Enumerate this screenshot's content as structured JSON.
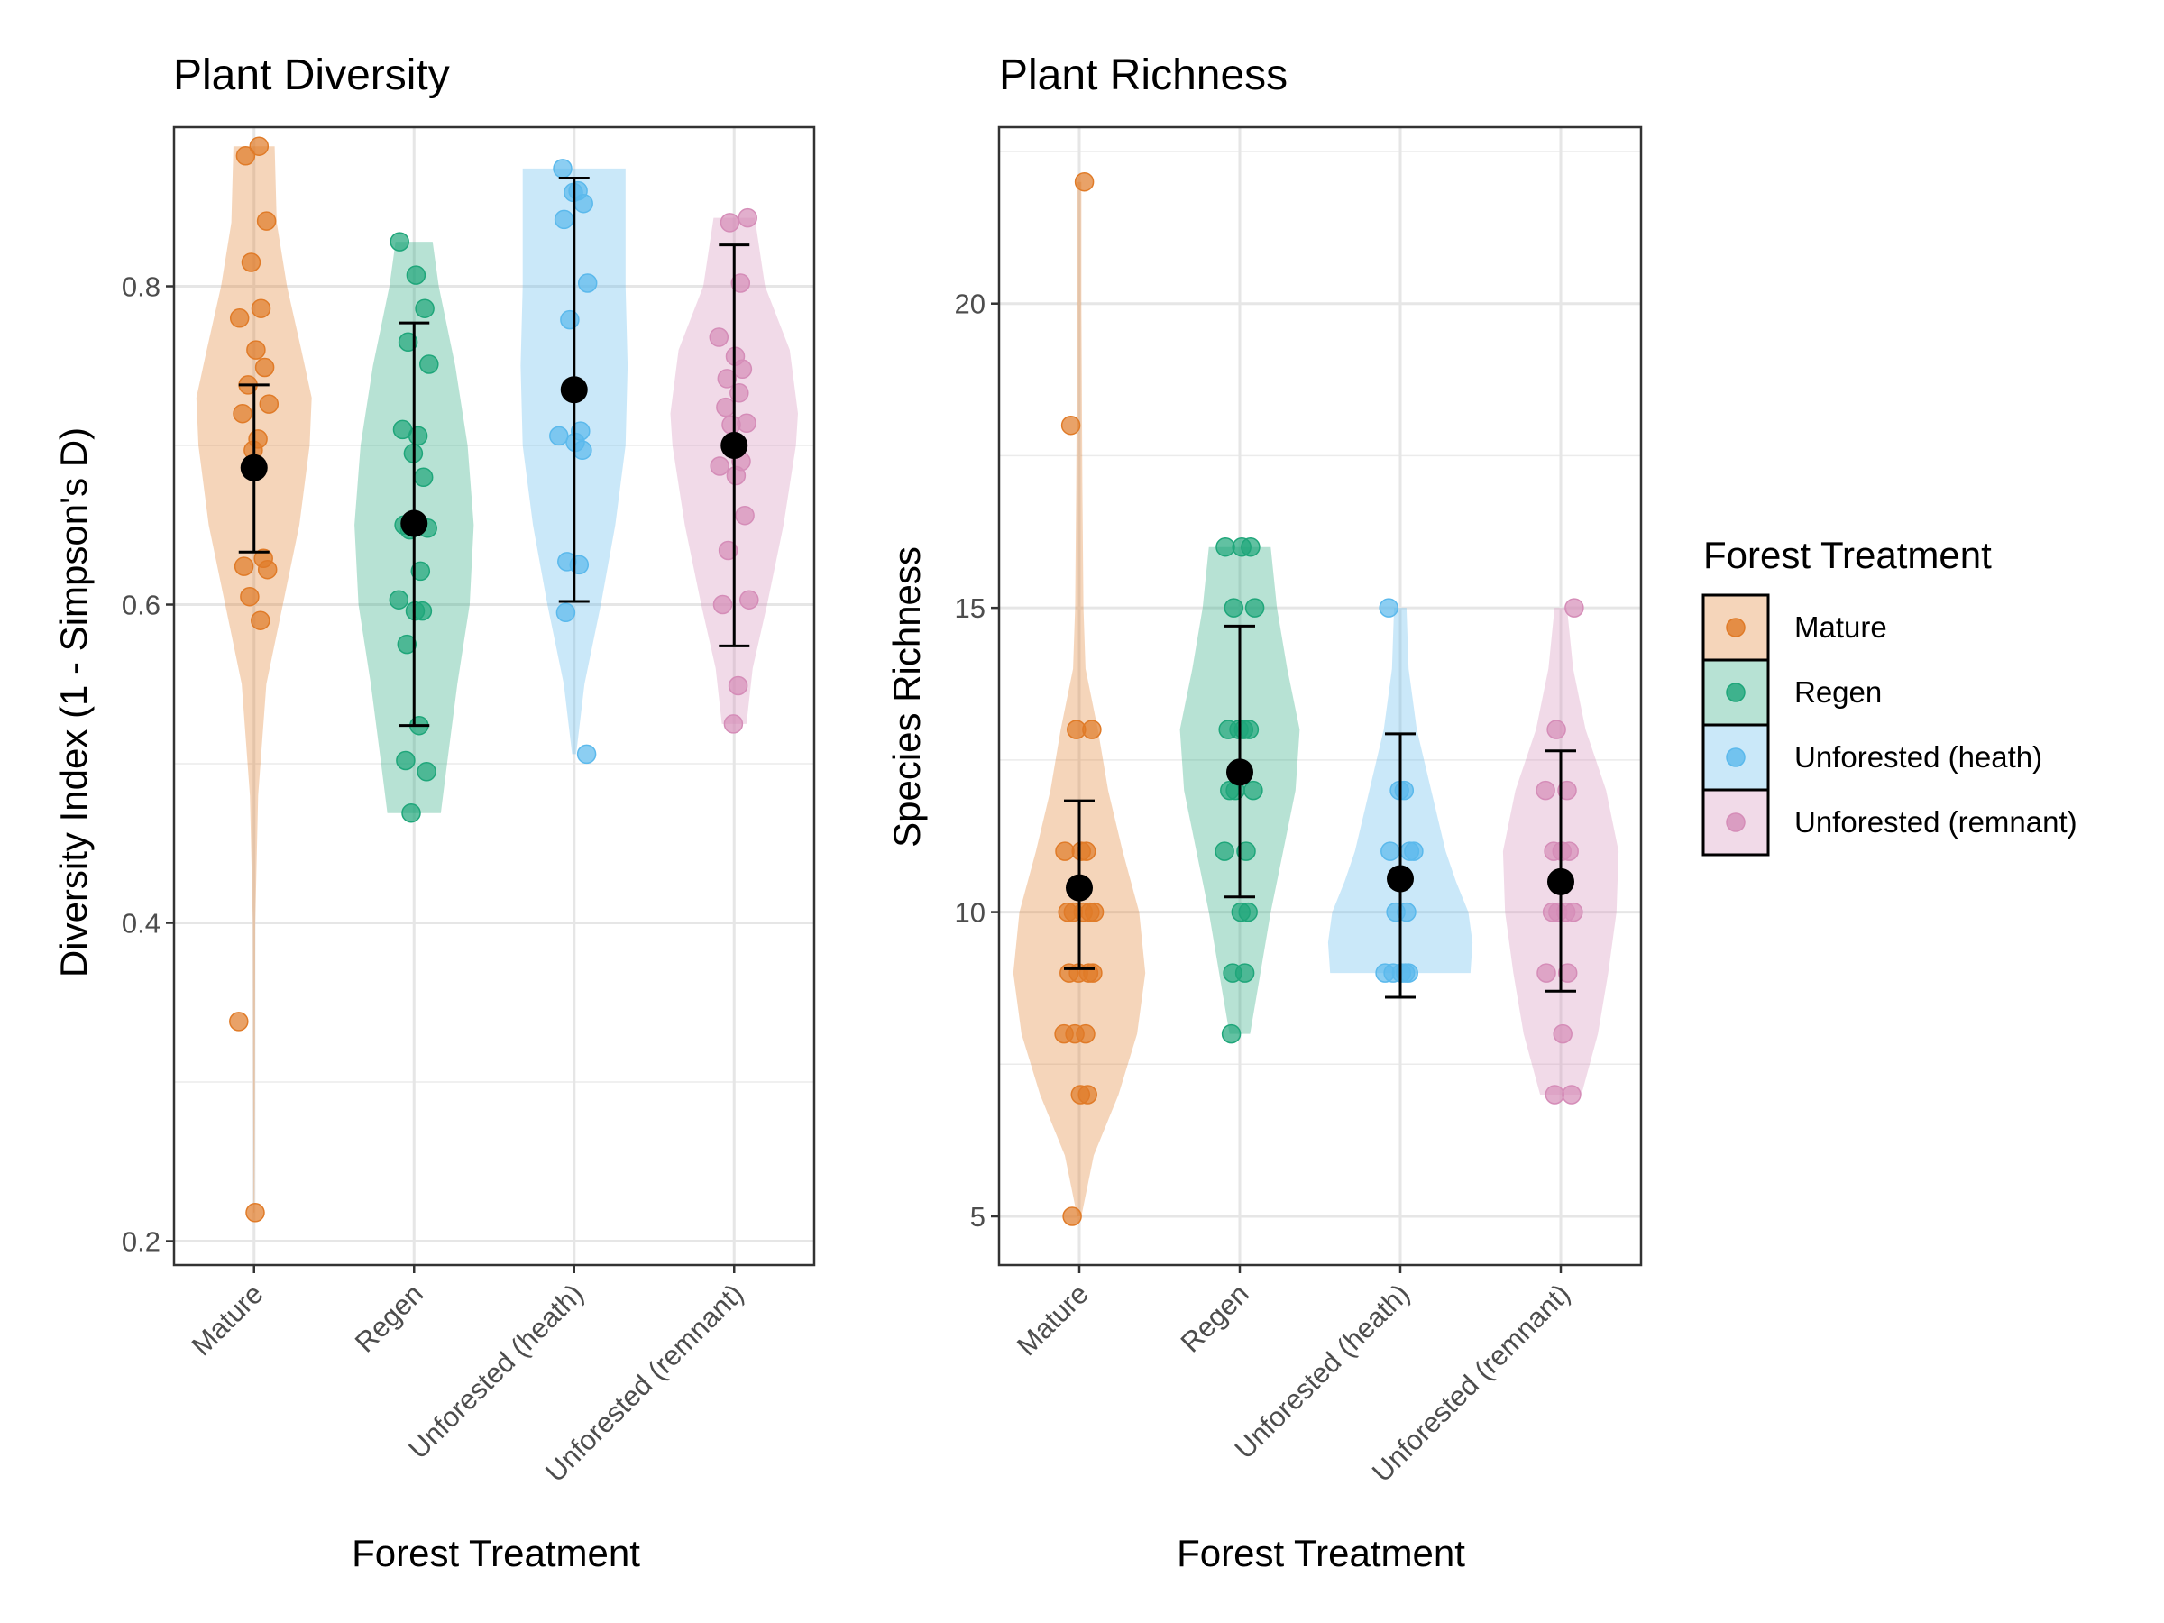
{
  "legend": {
    "title": "Forest Treatment",
    "entries": [
      {
        "label": "Mature",
        "color": "#E07B28"
      },
      {
        "label": "Regen",
        "color": "#1FA67A"
      },
      {
        "label": "Unforested (heath)",
        "color": "#5BB9EC"
      },
      {
        "label": "Unforested (remnant)",
        "color": "#D58DB8"
      }
    ]
  },
  "chart_data": [
    {
      "type": "violin",
      "title": "Plant Diversity",
      "xlabel": "Forest Treatment",
      "ylabel": "Diversity Index (1 - Simpson's D)",
      "ylim": [
        0.185,
        0.9
      ],
      "yticks": [
        0.2,
        0.4,
        0.6,
        0.8
      ],
      "ytick_labels": [
        "0.2",
        "0.4",
        "0.6",
        "0.8"
      ],
      "grid": true,
      "categories": [
        "Mature",
        "Regen",
        "Unforested (heath)",
        "Unforested (remnant)"
      ],
      "series": [
        {
          "name": "Mature",
          "points": [
            0.888,
            0.882,
            0.841,
            0.815,
            0.786,
            0.78,
            0.76,
            0.749,
            0.738,
            0.726,
            0.72,
            0.704,
            0.697,
            0.629,
            0.624,
            0.622,
            0.605,
            0.59,
            0.338,
            0.218
          ],
          "mean": 0.686,
          "lower": 0.633,
          "upper": 0.738,
          "violin": [
            [
              0.218,
              0.002
            ],
            [
              0.3,
              0.004
            ],
            [
              0.4,
              0.006
            ],
            [
              0.48,
              0.02
            ],
            [
              0.55,
              0.06
            ],
            [
              0.6,
              0.14
            ],
            [
              0.65,
              0.22
            ],
            [
              0.7,
              0.27
            ],
            [
              0.73,
              0.28
            ],
            [
              0.76,
              0.23
            ],
            [
              0.8,
              0.16
            ],
            [
              0.84,
              0.11
            ],
            [
              0.888,
              0.1
            ]
          ]
        },
        {
          "name": "Regen",
          "points": [
            0.828,
            0.807,
            0.786,
            0.765,
            0.751,
            0.71,
            0.706,
            0.695,
            0.68,
            0.65,
            0.648,
            0.647,
            0.621,
            0.603,
            0.596,
            0.596,
            0.575,
            0.524,
            0.502,
            0.495,
            0.469
          ],
          "mean": 0.651,
          "lower": 0.524,
          "upper": 0.777,
          "violin": [
            [
              0.469,
              0.13
            ],
            [
              0.5,
              0.16
            ],
            [
              0.55,
              0.21
            ],
            [
              0.6,
              0.27
            ],
            [
              0.65,
              0.29
            ],
            [
              0.7,
              0.26
            ],
            [
              0.75,
              0.2
            ],
            [
              0.8,
              0.12
            ],
            [
              0.828,
              0.09
            ]
          ]
        },
        {
          "name": "Unforested (heath)",
          "points": [
            0.874,
            0.86,
            0.859,
            0.852,
            0.842,
            0.802,
            0.779,
            0.709,
            0.706,
            0.702,
            0.697,
            0.627,
            0.625,
            0.595,
            0.506
          ],
          "mean": 0.735,
          "lower": 0.602,
          "upper": 0.868,
          "violin": [
            [
              0.506,
              0.01
            ],
            [
              0.55,
              0.05
            ],
            [
              0.6,
              0.13
            ],
            [
              0.65,
              0.2
            ],
            [
              0.7,
              0.25
            ],
            [
              0.75,
              0.26
            ],
            [
              0.8,
              0.25
            ],
            [
              0.84,
              0.25
            ],
            [
              0.874,
              0.25
            ]
          ]
        },
        {
          "name": "Unforested (remnant)",
          "points": [
            0.843,
            0.84,
            0.802,
            0.768,
            0.756,
            0.748,
            0.742,
            0.733,
            0.724,
            0.714,
            0.713,
            0.69,
            0.687,
            0.681,
            0.656,
            0.634,
            0.603,
            0.6,
            0.549,
            0.525
          ],
          "mean": 0.7,
          "lower": 0.574,
          "upper": 0.826,
          "violin": [
            [
              0.525,
              0.06
            ],
            [
              0.56,
              0.09
            ],
            [
              0.6,
              0.16
            ],
            [
              0.65,
              0.24
            ],
            [
              0.7,
              0.3
            ],
            [
              0.72,
              0.31
            ],
            [
              0.76,
              0.27
            ],
            [
              0.8,
              0.15
            ],
            [
              0.843,
              0.1
            ]
          ]
        }
      ]
    },
    {
      "type": "violin",
      "title": "Plant Richness",
      "xlabel": "Forest Treatment",
      "ylabel": "Species Richness",
      "ylim": [
        4.2,
        22.9
      ],
      "yticks": [
        5,
        10,
        15,
        20
      ],
      "ytick_labels": [
        "5",
        "10",
        "15",
        "20"
      ],
      "grid": true,
      "categories": [
        "Mature",
        "Regen",
        "Unforested (heath)",
        "Unforested (remnant)"
      ],
      "series": [
        {
          "name": "Mature",
          "points": [
            22,
            18,
            13,
            13,
            11,
            11,
            11,
            10,
            10,
            10,
            10,
            10,
            9,
            9,
            9,
            9,
            8,
            8,
            8,
            7,
            7,
            5
          ],
          "mean": 10.4,
          "lower": 9.07,
          "upper": 11.83,
          "violin": [
            [
              5,
              0.01
            ],
            [
              6,
              0.07
            ],
            [
              7,
              0.19
            ],
            [
              8,
              0.28
            ],
            [
              9,
              0.32
            ],
            [
              10,
              0.29
            ],
            [
              11,
              0.21
            ],
            [
              12,
              0.14
            ],
            [
              13,
              0.09
            ],
            [
              14,
              0.03
            ],
            [
              15,
              0.02
            ],
            [
              17,
              0.015
            ],
            [
              20,
              0.01
            ],
            [
              22,
              0.01
            ]
          ]
        },
        {
          "name": "Regen",
          "points": [
            16,
            16,
            16,
            15,
            15,
            13,
            13,
            13,
            13,
            12,
            12,
            12,
            11,
            11,
            10,
            10,
            9,
            9,
            8
          ],
          "mean": 12.3,
          "lower": 10.25,
          "upper": 14.7,
          "violin": [
            [
              8,
              0.05
            ],
            [
              9,
              0.1
            ],
            [
              10,
              0.15
            ],
            [
              11,
              0.21
            ],
            [
              12,
              0.27
            ],
            [
              13,
              0.29
            ],
            [
              14,
              0.23
            ],
            [
              15,
              0.18
            ],
            [
              16,
              0.15
            ]
          ]
        },
        {
          "name": "Unforested (heath)",
          "points": [
            15,
            12,
            12,
            11,
            11,
            11,
            10,
            10,
            9,
            9,
            9,
            9,
            9
          ],
          "mean": 10.55,
          "lower": 8.6,
          "upper": 12.93,
          "violin": [
            [
              9,
              0.34
            ],
            [
              9.5,
              0.35
            ],
            [
              10,
              0.33
            ],
            [
              10.5,
              0.27
            ],
            [
              11,
              0.22
            ],
            [
              12,
              0.15
            ],
            [
              13,
              0.08
            ],
            [
              14,
              0.04
            ],
            [
              15,
              0.03
            ]
          ]
        },
        {
          "name": "Unforested (remnant)",
          "points": [
            15,
            13,
            12,
            12,
            11,
            11,
            11,
            10,
            10,
            10,
            10,
            9,
            9,
            8,
            7,
            7
          ],
          "mean": 10.5,
          "lower": 8.7,
          "upper": 12.65,
          "violin": [
            [
              7,
              0.1
            ],
            [
              8,
              0.18
            ],
            [
              9,
              0.23
            ],
            [
              10,
              0.27
            ],
            [
              11,
              0.28
            ],
            [
              12,
              0.22
            ],
            [
              13,
              0.12
            ],
            [
              14,
              0.06
            ],
            [
              15,
              0.03
            ]
          ]
        }
      ]
    }
  ]
}
